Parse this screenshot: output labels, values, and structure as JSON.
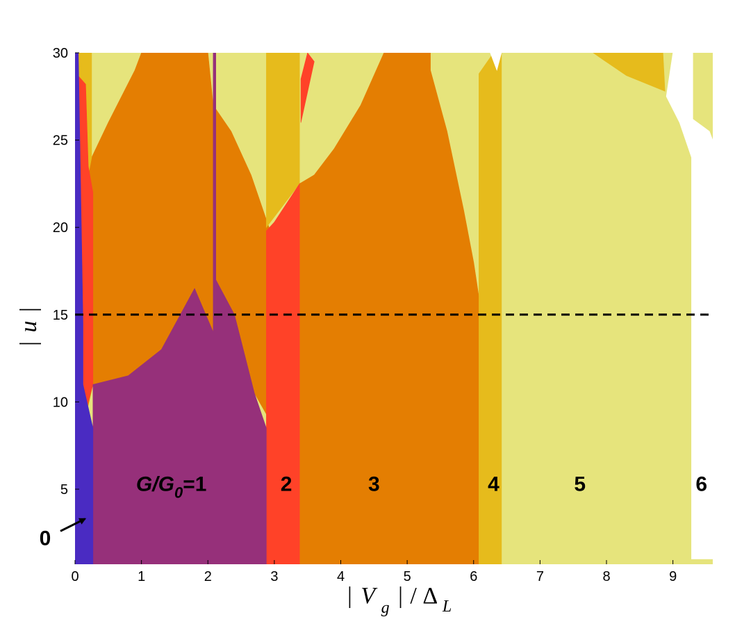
{
  "colors": {
    "n0": "#4a2bc2",
    "n1": "#96307a",
    "n2": "#ff4228",
    "n3": "#e47e02",
    "n4": "#e6bb1c",
    "n5": "#e6e47c",
    "dash": "#000000"
  },
  "chart_data": {
    "type": "heatmap",
    "title": "",
    "xlabel_parts": {
      "bar1": "|",
      "var": "V",
      "sub": "g",
      "bar2": "|",
      "slash": "/",
      "delta": "Δ",
      "dsub": "L"
    },
    "ylabel_parts": {
      "bar1": "|",
      "var": "u",
      "bar2": "|"
    },
    "xlim": [
      0,
      9.6
    ],
    "ylim": [
      0.7,
      30
    ],
    "xticks": [
      "0",
      "1",
      "2",
      "3",
      "4",
      "5",
      "6",
      "7",
      "8",
      "9"
    ],
    "yticks": [
      "5",
      "10",
      "15",
      "20",
      "25",
      "30"
    ],
    "grid": false,
    "legend": "none",
    "dashed_line_y": 15,
    "region_labels": [
      {
        "text_main": "G",
        "text_slash": "/",
        "text_g0": "G",
        "text_sub": "0",
        "text_eq": "=1",
        "x": 1.45,
        "y": 5.3
      },
      {
        "text": "2",
        "x": 3.18,
        "y": 5.3
      },
      {
        "text": "3",
        "x": 4.5,
        "y": 5.3
      },
      {
        "text": "4",
        "x": 6.3,
        "y": 5.3
      },
      {
        "text": "5",
        "x": 7.6,
        "y": 5.3
      },
      {
        "text": "6",
        "x": 9.43,
        "y": 5.3
      }
    ],
    "arrow_label": {
      "text": "0",
      "x_text": -0.45,
      "y_text": 2.2,
      "x_tip": 0.15,
      "y_tip": 3.3
    },
    "regions": [
      {
        "n": 5,
        "fill": "#e6e47c",
        "points": [
          [
            0,
            30
          ],
          [
            9.6,
            30
          ],
          [
            9.6,
            0.7
          ],
          [
            0,
            0.7
          ]
        ]
      },
      {
        "n": 3,
        "fill": "#e47e02",
        "points": [
          [
            0.02,
            23.0
          ],
          [
            0.2,
            23.0
          ],
          [
            0.25,
            24.0
          ],
          [
            0.5,
            26.0
          ],
          [
            0.9,
            29.0
          ],
          [
            1.0,
            30
          ],
          [
            2.0,
            30
          ],
          [
            2.08,
            27.0
          ],
          [
            2.08,
            14.0
          ],
          [
            1.8,
            16.5
          ],
          [
            1.3,
            13.0
          ],
          [
            0.8,
            11.5
          ],
          [
            0.27,
            11.0
          ],
          [
            0.18,
            9.5
          ],
          [
            0.02,
            11.0
          ]
        ]
      },
      {
        "n": 3,
        "fill": "#e47e02",
        "points": [
          [
            2.08,
            27.0
          ],
          [
            2.35,
            25.5
          ],
          [
            2.65,
            23.0
          ],
          [
            2.92,
            20.0
          ],
          [
            3.0,
            19.8
          ],
          [
            3.0,
            8.5
          ],
          [
            2.7,
            10.5
          ],
          [
            2.4,
            15.0
          ],
          [
            2.08,
            17.0
          ]
        ]
      },
      {
        "n": 3,
        "fill": "#e47e02",
        "points": [
          [
            3.38,
            22.5
          ],
          [
            3.6,
            23.0
          ],
          [
            3.9,
            24.5
          ],
          [
            4.3,
            27.0
          ],
          [
            4.65,
            30
          ],
          [
            5.35,
            30
          ],
          [
            5.35,
            29.0
          ],
          [
            5.6,
            25.5
          ],
          [
            5.85,
            21.0
          ],
          [
            6.0,
            18.0
          ],
          [
            6.08,
            16.0
          ],
          [
            6.08,
            0.7
          ],
          [
            3.38,
            0.7
          ]
        ]
      },
      {
        "n": 4,
        "fill": "#e6bb1c",
        "points": [
          [
            0.02,
            30
          ],
          [
            0.25,
            30
          ],
          [
            0.25,
            24.0
          ],
          [
            0.2,
            23.0
          ],
          [
            0.02,
            23.0
          ]
        ]
      },
      {
        "n": 4,
        "fill": "#e6bb1c",
        "points": [
          [
            2.88,
            20.0
          ],
          [
            3.38,
            22.5
          ],
          [
            3.38,
            30
          ],
          [
            2.88,
            30
          ]
        ]
      },
      {
        "n": 4,
        "fill": "#e6bb1c",
        "points": [
          [
            6.08,
            28.8
          ],
          [
            6.3,
            30
          ],
          [
            6.42,
            30
          ],
          [
            6.42,
            0.7
          ],
          [
            6.08,
            0.7
          ]
        ]
      },
      {
        "n": 4,
        "fill": "#e6bb1c",
        "points": [
          [
            7.8,
            30
          ],
          [
            8.85,
            30
          ],
          [
            8.88,
            27.8
          ],
          [
            8.3,
            28.7
          ],
          [
            7.95,
            29.6
          ]
        ]
      },
      {
        "n": 2,
        "fill": "#ff4228",
        "points": [
          [
            0.02,
            28.8
          ],
          [
            0.16,
            28.2
          ],
          [
            0.2,
            23.5
          ],
          [
            0.27,
            22.0
          ],
          [
            0.27,
            11.0
          ],
          [
            0.16,
            9.5
          ],
          [
            0.02,
            10.5
          ]
        ]
      },
      {
        "n": 2,
        "fill": "#ff4228",
        "points": [
          [
            2.88,
            19.8
          ],
          [
            3.0,
            20.3
          ],
          [
            3.38,
            22.5
          ],
          [
            3.38,
            0.7
          ],
          [
            2.88,
            0.7
          ]
        ]
      },
      {
        "n": 2,
        "fill": "#ff4228",
        "points": [
          [
            3.4,
            26.0
          ],
          [
            3.6,
            29.5
          ],
          [
            3.5,
            30
          ],
          [
            3.4,
            28.5
          ]
        ]
      },
      {
        "n": 1,
        "fill": "#96307a",
        "points": [
          [
            0.27,
            0.7
          ],
          [
            0.27,
            11.0
          ],
          [
            0.8,
            11.5
          ],
          [
            1.3,
            13.0
          ],
          [
            1.8,
            16.5
          ],
          [
            2.08,
            14.0
          ],
          [
            2.08,
            30
          ],
          [
            2.12,
            30
          ],
          [
            2.12,
            17.0
          ],
          [
            2.4,
            15.0
          ],
          [
            2.7,
            10.5
          ],
          [
            2.88,
            8.5
          ],
          [
            2.88,
            0.7
          ]
        ]
      },
      {
        "n": 0,
        "fill": "#4a2bc2",
        "points": [
          [
            0.0,
            0.7
          ],
          [
            0.27,
            0.7
          ],
          [
            0.27,
            8.5
          ],
          [
            0.12,
            11.0
          ],
          [
            0.12,
            14.5
          ],
          [
            0.05,
            30
          ],
          [
            0.0,
            30
          ]
        ]
      },
      {
        "n": -1,
        "fill": "#ffffff",
        "points": [
          [
            6.25,
            30
          ],
          [
            6.42,
            30
          ],
          [
            6.35,
            29.0
          ]
        ]
      },
      {
        "n": -1,
        "fill": "#ffffff",
        "points": [
          [
            9.0,
            30
          ],
          [
            9.3,
            30
          ],
          [
            9.3,
            26.2
          ],
          [
            9.55,
            25.5
          ],
          [
            9.6,
            25.0
          ],
          [
            9.6,
            1.0
          ],
          [
            9.28,
            1.0
          ],
          [
            9.28,
            24.0
          ],
          [
            9.1,
            26.0
          ],
          [
            8.9,
            27.5
          ]
        ]
      }
    ]
  }
}
